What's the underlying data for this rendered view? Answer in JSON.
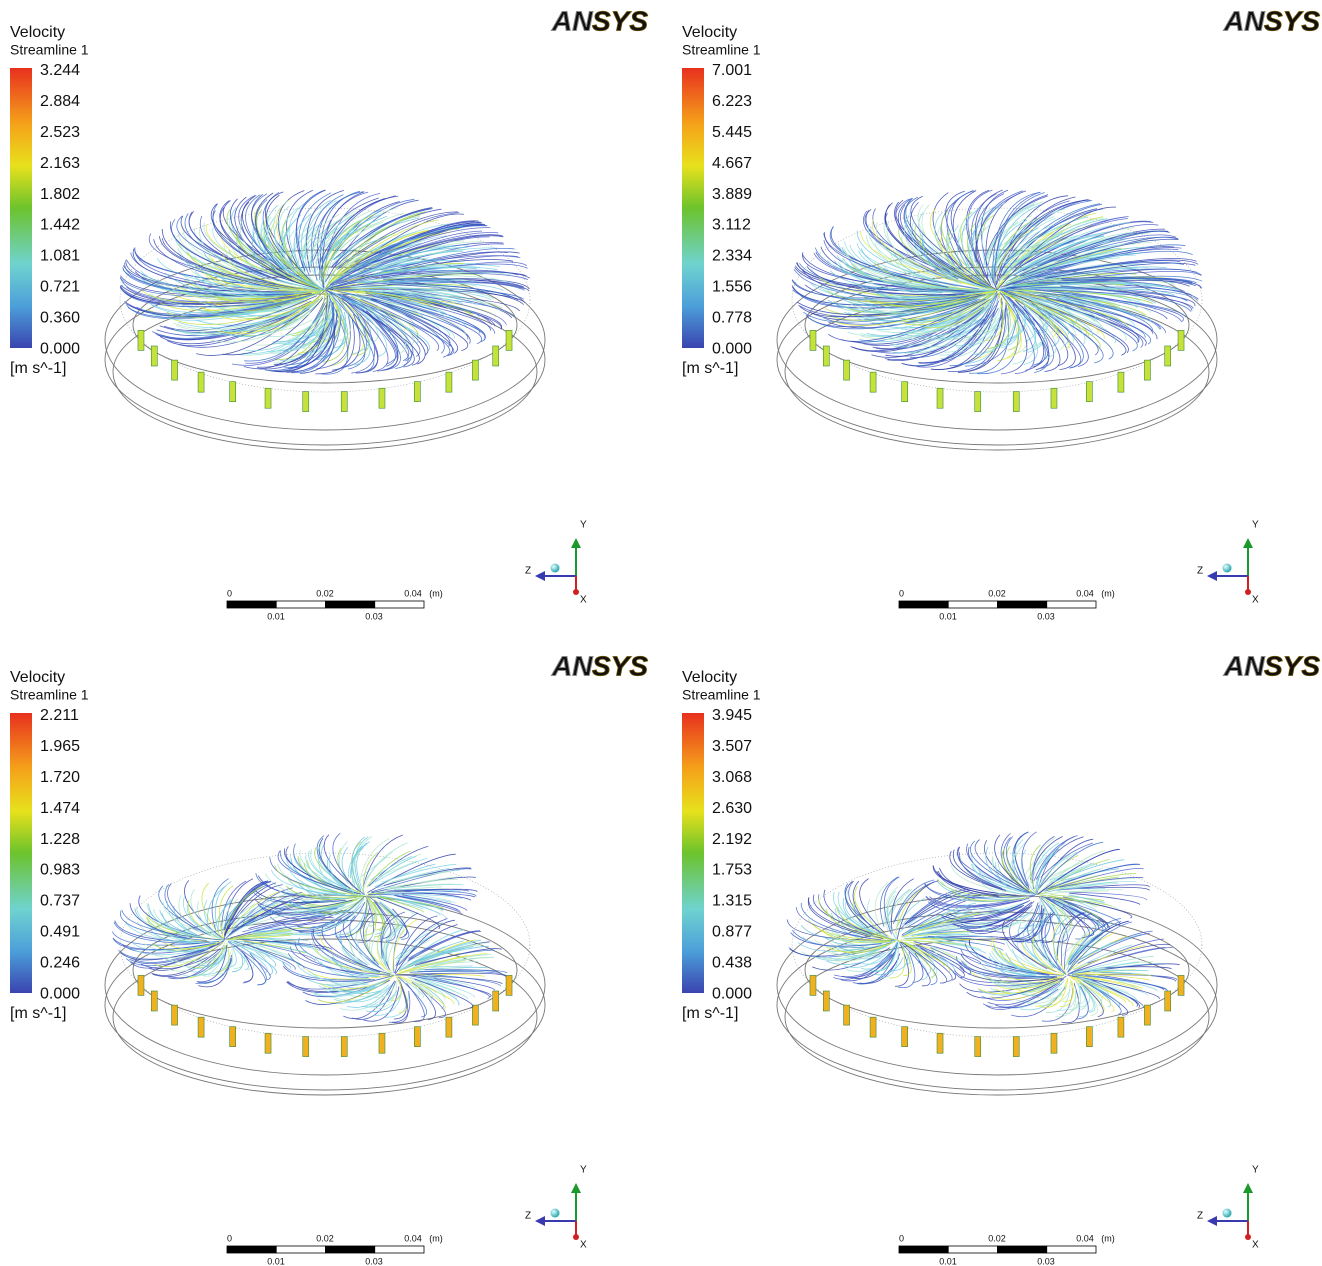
{
  "panels": [
    {
      "title": "Velocity",
      "subtitle": "Streamline 1",
      "legend_labels": [
        "3.244",
        "2.884",
        "2.523",
        "2.163",
        "1.802",
        "1.442",
        "1.081",
        "0.721",
        "0.360",
        "0.000"
      ],
      "unit": "[m s^-1]",
      "logo": [
        "AN",
        "SYS"
      ],
      "scale_top": [
        "0",
        "0.02",
        "0.04",
        "(m)"
      ],
      "scale_bottom": [
        "0.01",
        "0.03"
      ],
      "axes": [
        "Y",
        "Z",
        "X"
      ]
    },
    {
      "title": "Velocity",
      "subtitle": "Streamline 1",
      "legend_labels": [
        "7.001",
        "6.223",
        "5.445",
        "4.667",
        "3.889",
        "3.112",
        "2.334",
        "1.556",
        "0.778",
        "0.000"
      ],
      "unit": "[m s^-1]",
      "logo": [
        "AN",
        "SYS"
      ],
      "scale_top": [
        "0",
        "0.02",
        "0.04",
        "(m)"
      ],
      "scale_bottom": [
        "0.01",
        "0.03"
      ],
      "axes": [
        "Y",
        "Z",
        "X"
      ]
    },
    {
      "title": "Velocity",
      "subtitle": "Streamline 1",
      "legend_labels": [
        "2.211",
        "1.965",
        "1.720",
        "1.474",
        "1.228",
        "0.983",
        "0.737",
        "0.491",
        "0.246",
        "0.000"
      ],
      "unit": "[m s^-1]",
      "logo": [
        "AN",
        "SYS"
      ],
      "scale_top": [
        "0",
        "0.02",
        "0.04",
        "(m)"
      ],
      "scale_bottom": [
        "0.01",
        "0.03"
      ],
      "axes": [
        "Y",
        "Z",
        "X"
      ]
    },
    {
      "title": "Velocity",
      "subtitle": "Streamline 1",
      "legend_labels": [
        "3.945",
        "3.507",
        "3.068",
        "2.630",
        "2.192",
        "1.753",
        "1.315",
        "0.877",
        "0.438",
        "0.000"
      ],
      "unit": "[m s^-1]",
      "logo": [
        "AN",
        "SYS"
      ],
      "scale_top": [
        "0",
        "0.02",
        "0.04",
        "(m)"
      ],
      "scale_bottom": [
        "0.01",
        "0.03"
      ],
      "axes": [
        "Y",
        "Z",
        "X"
      ]
    }
  ]
}
